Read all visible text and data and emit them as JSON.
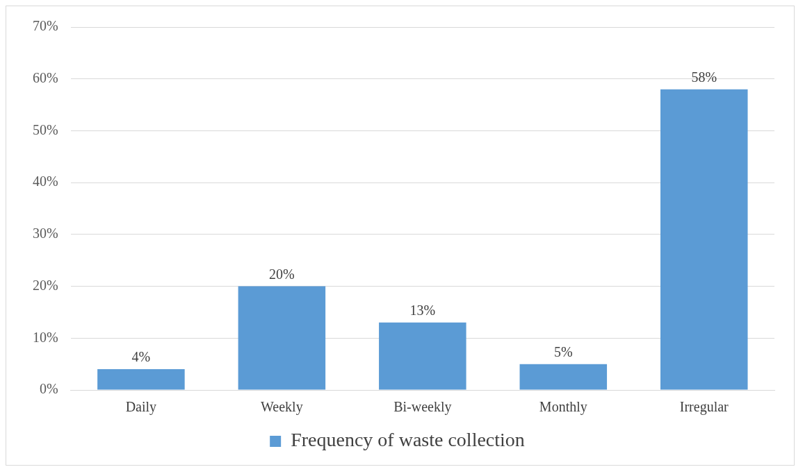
{
  "chart_data": {
    "type": "bar",
    "categories": [
      "Daily",
      "Weekly",
      "Bi-weekly",
      "Monthly",
      "Irregular"
    ],
    "series": [
      {
        "name": "Frequency of waste collection",
        "color": "#5b9bd5",
        "values": [
          4,
          20,
          13,
          5,
          58
        ],
        "value_labels": [
          "4%",
          "20%",
          "13%",
          "5%",
          "58%"
        ]
      }
    ],
    "ylim": [
      0,
      70
    ],
    "yticks": [
      {
        "value": 0,
        "label": "0%"
      },
      {
        "value": 10,
        "label": "10%"
      },
      {
        "value": 20,
        "label": "20%"
      },
      {
        "value": 30,
        "label": "30%"
      },
      {
        "value": 40,
        "label": "40%"
      },
      {
        "value": 50,
        "label": "50%"
      },
      {
        "value": 60,
        "label": "60%"
      },
      {
        "value": 70,
        "label": "70%"
      }
    ],
    "grid": "y",
    "legend": "bottom"
  }
}
